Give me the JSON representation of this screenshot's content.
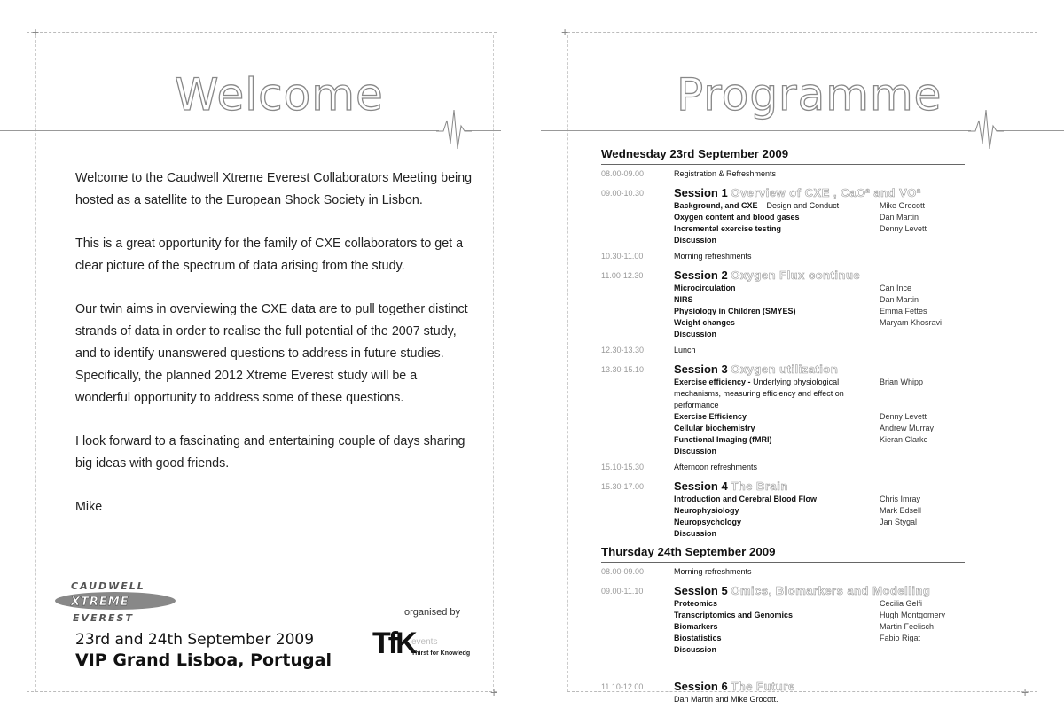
{
  "welcome_page": {
    "title": "Welcome",
    "paragraphs": [
      "Welcome to the Caudwell Xtreme Everest Collaborators Meeting being hosted as a satellite to the European Shock Society in Lisbon.",
      "This is a great opportunity for the family of CXE collaborators to get a clear picture of the spectrum of data arising from the study.",
      "Our twin aims in overviewing the CXE data are to pull together distinct strands of data in order to realise the full potential of the 2007 study, and to identify unanswered questions to address in future studies. Specifically, the planned 2012 Xtreme Everest study will be a wonderful opportunity to address some of these questions.",
      "I look forward to a fascinating and entertaining couple of days sharing big ideas with good friends.",
      "Mike"
    ],
    "logo_text": [
      "CAUDWELL",
      "XTREME",
      "EVEREST"
    ],
    "dates": "23rd and 24th September 2009",
    "venue": "VIP Grand Lisboa, Portugal",
    "organised_by": "organised by",
    "organiser_logo": {
      "mark": "TfK",
      "word": "events",
      "tagline": "Thirst for Knowledge"
    }
  },
  "programme_page": {
    "title": "Programme",
    "days": [
      {
        "heading": "Wednesday 23rd September 2009",
        "entries": [
          {
            "time": "08.00-09.00",
            "text": "Registration & Refreshments"
          },
          {
            "time": "09.00-10.30",
            "session": "Session 1",
            "topic": "Overview of CXE , CaO² and VO²",
            "items": [
              {
                "title": "Background, and CXE –",
                "detail": "Design and Conduct",
                "speaker": "Mike Grocott"
              },
              {
                "title": "Oxygen content and blood gases",
                "speaker": "Dan Martin"
              },
              {
                "title": "Incremental exercise testing",
                "speaker": "Denny Levett"
              },
              {
                "title": "Discussion"
              }
            ]
          },
          {
            "time": "10.30-11.00",
            "text": "Morning refreshments"
          },
          {
            "time": "11.00-12.30",
            "session": "Session 2",
            "topic": "Oxygen Flux continue",
            "items": [
              {
                "title": "Microcirculation",
                "speaker": "Can Ince"
              },
              {
                "title": "NIRS",
                "speaker": "Dan Martin"
              },
              {
                "title": "Physiology in Children (SMYES)",
                "speaker": "Emma Fettes"
              },
              {
                "title": "Weight changes",
                "speaker": "Maryam Khosravi"
              },
              {
                "title": "Discussion"
              }
            ]
          },
          {
            "time": "12.30-13.30",
            "text": "Lunch"
          },
          {
            "time": "13.30-15.10",
            "session": "Session 3",
            "topic": "Oxygen utilization",
            "items": [
              {
                "title": "Exercise efficiency -",
                "detail": "Underlying physiological mechanisms, measuring efficiency and effect on performance",
                "speaker": "Brian Whipp"
              },
              {
                "title": "Exercise Efficiency",
                "speaker": "Denny Levett"
              },
              {
                "title": "Cellular biochemistry",
                "speaker": "Andrew Murray"
              },
              {
                "title": "Functional Imaging (fMRI)",
                "speaker": "Kieran Clarke"
              },
              {
                "title": "Discussion"
              }
            ]
          },
          {
            "time": "15.10-15.30",
            "text": "Afternoon refreshments"
          },
          {
            "time": "15.30-17.00",
            "session": "Session 4",
            "topic": "The Brain",
            "items": [
              {
                "title": "Introduction and Cerebral Blood Flow",
                "speaker": "Chris Imray"
              },
              {
                "title": "Neurophysiology",
                "speaker": "Mark Edsell"
              },
              {
                "title": "Neuropsychology",
                "speaker": "Jan Stygal"
              },
              {
                "title": "Discussion"
              }
            ]
          }
        ]
      },
      {
        "heading": "Thursday 24th September 2009",
        "entries": [
          {
            "time": "08.00-09.00",
            "text": "Morning refreshments"
          },
          {
            "time": "09.00-11.10",
            "session": "Session 5",
            "topic": "Omics, Biomarkers and Modelling",
            "items": [
              {
                "title": "Proteomics",
                "speaker": "Cecilia Gelfi"
              },
              {
                "title": "Transcriptomics and Genomics",
                "speaker": "Hugh Montgomery"
              },
              {
                "title": "Biomarkers",
                "speaker": "Martin Feelisch"
              },
              {
                "title": "Biostatistics",
                "speaker": "Fabio Rigat"
              },
              {
                "title": "Discussion"
              }
            ],
            "gap_after": true
          },
          {
            "time": "11.10-12.00",
            "session": "Session 6",
            "topic": "The Future",
            "items": [
              {
                "detail": "Dan Martin and Mike Grocott."
              }
            ]
          }
        ]
      }
    ]
  }
}
